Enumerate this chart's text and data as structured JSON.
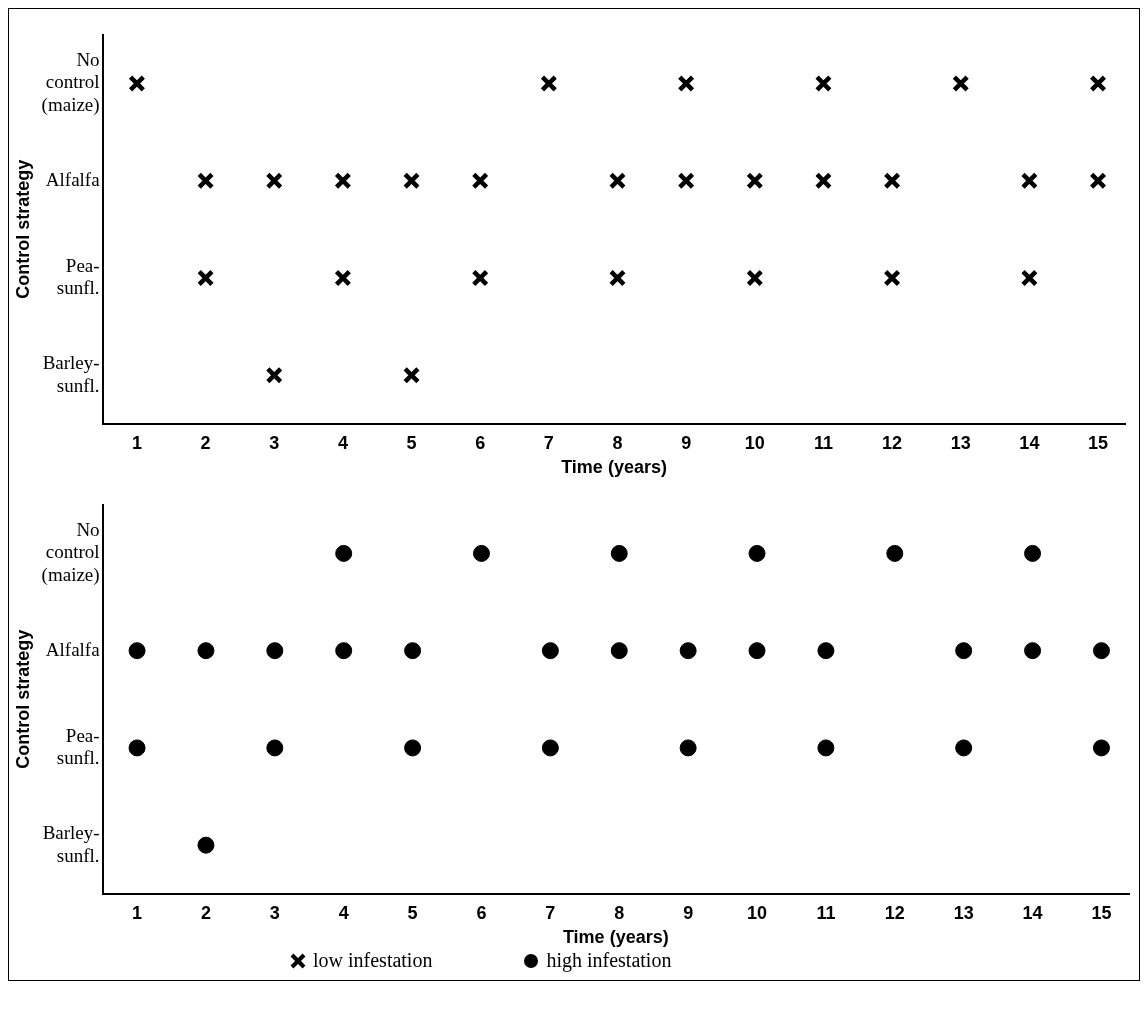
{
  "chart_data": [
    {
      "type": "scatter",
      "orientation": "horizontal",
      "xlabel": "Time (years)",
      "ylabel": "Control strategy",
      "categories": [
        "No control (maize)",
        "Alfalfa",
        "Pea-sunfl.",
        "Barley-sunfl."
      ],
      "xlim": [
        0.5,
        15.4
      ],
      "xticks": [
        1,
        2,
        3,
        4,
        5,
        6,
        7,
        8,
        9,
        10,
        11,
        12,
        13,
        14,
        15
      ],
      "grid": false,
      "legend": "bottom",
      "marker": "cross",
      "series": [
        {
          "name": "low infestation",
          "color": "#000000",
          "x": [
            "No control (maize)",
            "No control (maize)",
            "No control (maize)",
            "No control (maize)",
            "No control (maize)",
            "No control (maize)",
            "Alfalfa",
            "Alfalfa",
            "Alfalfa",
            "Alfalfa",
            "Alfalfa",
            "Alfalfa",
            "Alfalfa",
            "Alfalfa",
            "Alfalfa",
            "Alfalfa",
            "Alfalfa",
            "Alfalfa",
            "Pea-sunfl.",
            "Pea-sunfl.",
            "Pea-sunfl.",
            "Pea-sunfl.",
            "Pea-sunfl.",
            "Pea-sunfl.",
            "Pea-sunfl.",
            "Barley-sunfl.",
            "Barley-sunfl."
          ],
          "values": [
            1,
            7,
            9,
            11,
            13,
            15,
            2,
            3,
            4,
            5,
            6,
            8,
            9,
            10,
            11,
            12,
            14,
            15,
            2,
            4,
            6,
            8,
            10,
            12,
            14,
            3,
            5
          ]
        }
      ]
    },
    {
      "type": "scatter",
      "orientation": "horizontal",
      "xlabel": "Time (years)",
      "ylabel": "Control strategy",
      "categories": [
        "No control (maize)",
        "Alfalfa",
        "Pea-sunfl.",
        "Barley-sunfl."
      ],
      "xlim": [
        0.5,
        15.4
      ],
      "xticks": [
        1,
        2,
        3,
        4,
        5,
        6,
        7,
        8,
        9,
        10,
        11,
        12,
        13,
        14,
        15
      ],
      "grid": false,
      "legend": "bottom",
      "marker": "circle",
      "series": [
        {
          "name": "high infestation",
          "color": "#000000",
          "x": [
            "No control (maize)",
            "No control (maize)",
            "No control (maize)",
            "No control (maize)",
            "No control (maize)",
            "No control (maize)",
            "Alfalfa",
            "Alfalfa",
            "Alfalfa",
            "Alfalfa",
            "Alfalfa",
            "Alfalfa",
            "Alfalfa",
            "Alfalfa",
            "Alfalfa",
            "Alfalfa",
            "Alfalfa",
            "Alfalfa",
            "Alfalfa",
            "Pea-sunfl.",
            "Pea-sunfl.",
            "Pea-sunfl.",
            "Pea-sunfl.",
            "Pea-sunfl.",
            "Pea-sunfl.",
            "Pea-sunfl.",
            "Pea-sunfl.",
            "Barley-sunfl."
          ],
          "values": [
            4,
            6,
            8,
            10,
            12,
            14,
            1,
            2,
            3,
            4,
            5,
            7,
            8,
            9,
            10,
            11,
            13,
            14,
            15,
            1,
            3,
            5,
            7,
            9,
            11,
            13,
            15,
            2
          ]
        }
      ]
    }
  ]
}
